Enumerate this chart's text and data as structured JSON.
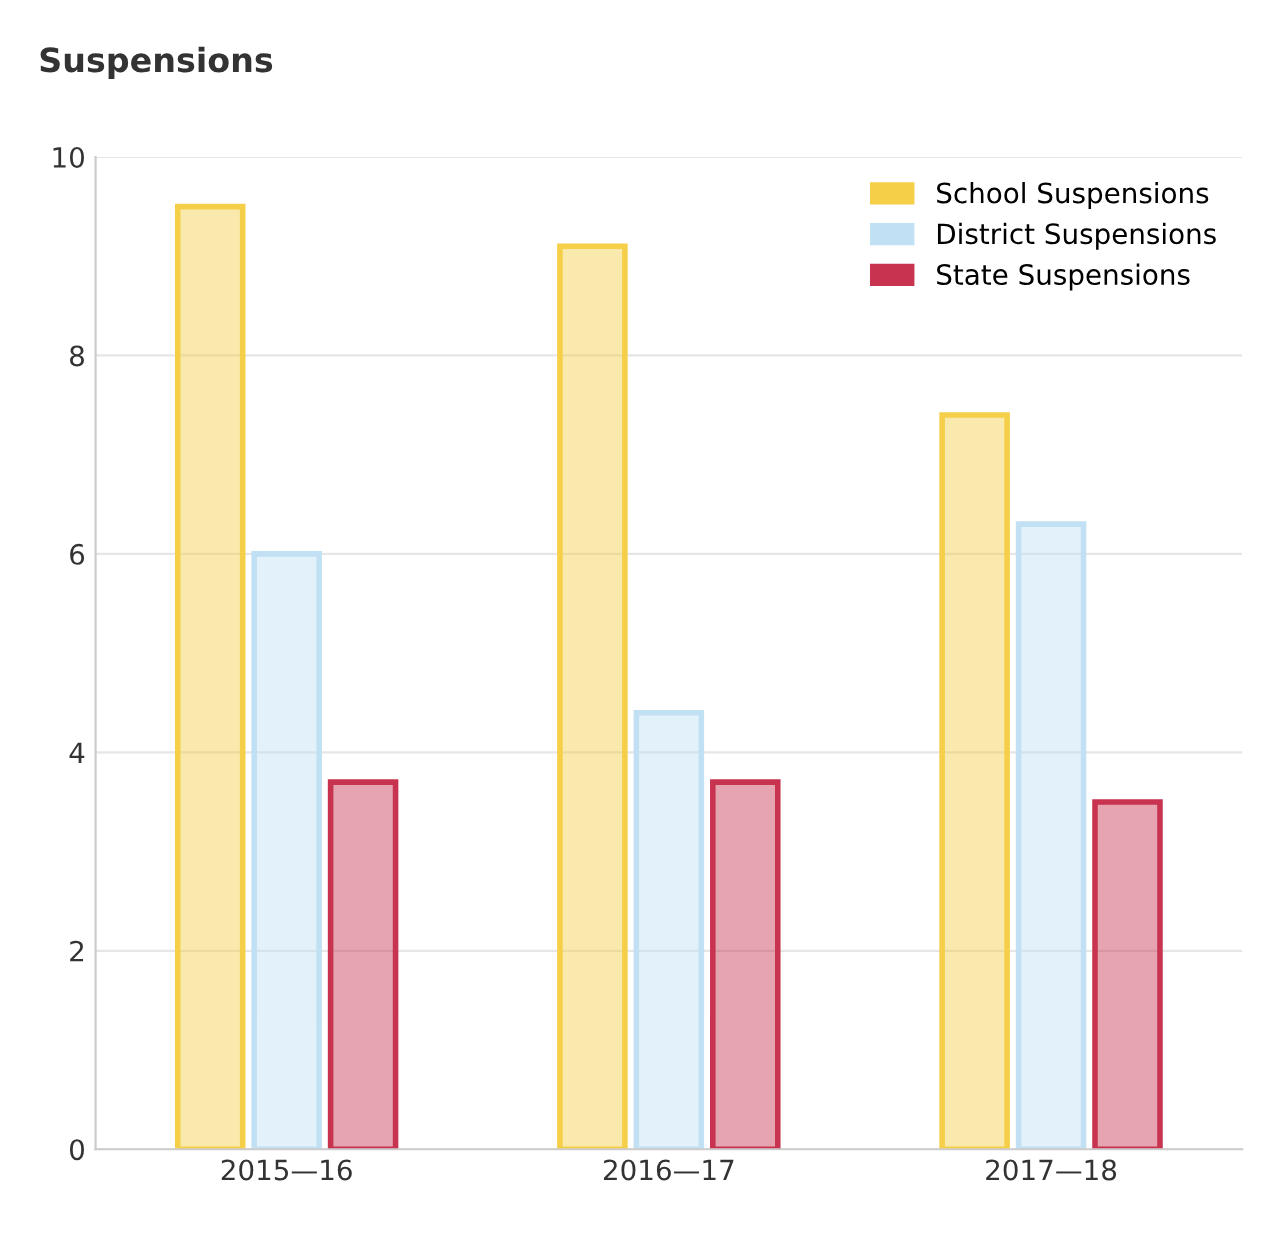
{
  "chart_data": {
    "type": "bar",
    "title": "Suspensions",
    "categories": [
      "2015—16",
      "2016—17",
      "2017—18"
    ],
    "series": [
      {
        "name": "School Suspensions",
        "color": "#f5cf47",
        "values": [
          9.5,
          9.1,
          7.4
        ]
      },
      {
        "name": "District Suspensions",
        "color": "#c2e0f4",
        "values": [
          6.0,
          4.4,
          6.3
        ]
      },
      {
        "name": "State Suspensions",
        "color": "#c8334f",
        "values": [
          3.7,
          3.7,
          3.5
        ]
      }
    ],
    "ylim": [
      0,
      10
    ],
    "yticks": [
      0,
      2,
      4,
      6,
      8,
      10
    ],
    "grid": "y",
    "legend": "top right"
  }
}
